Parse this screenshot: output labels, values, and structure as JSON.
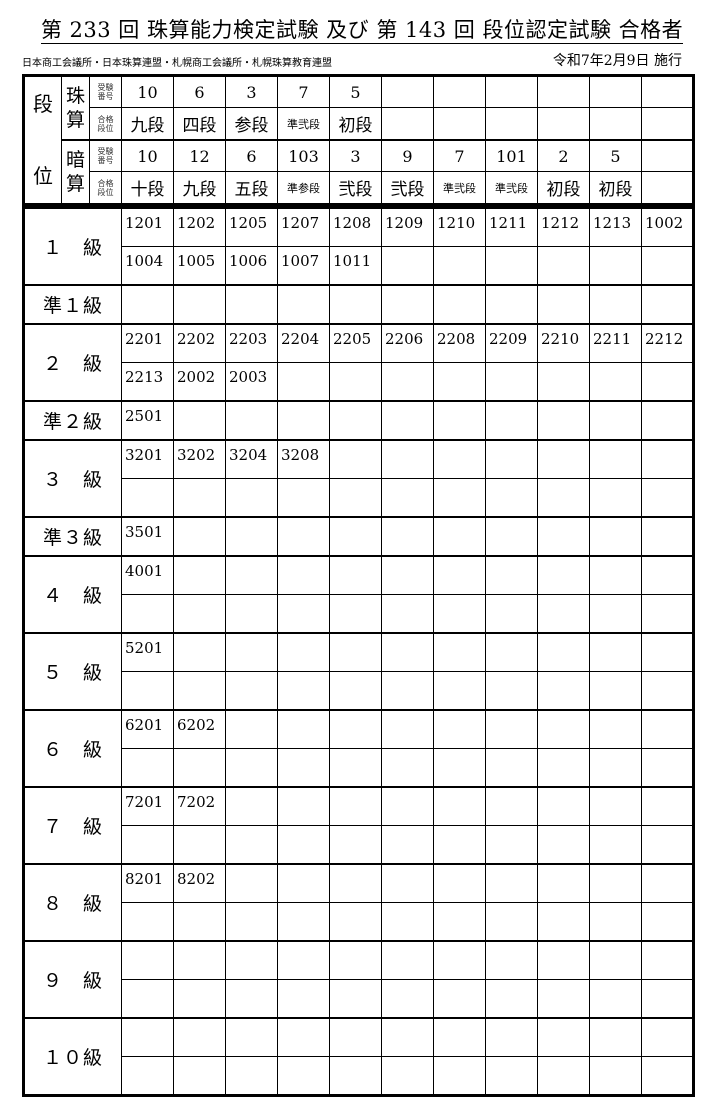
{
  "title": "第 233 回 珠算能力検定試験 及び 第 143 回 段位認定試験 合格者",
  "organizers": "日本商工会議所・日本珠算連盟・札幌商工会議所・札幌珠算教育連盟",
  "date": "令和7年2月9日 施行",
  "dan": {
    "label_top": "段",
    "label_bottom": "位",
    "sub_label_exam": "受験\n番号",
    "sub_label_grade": "合格\n段位",
    "soroban": {
      "label1": "珠",
      "label2": "算",
      "numbers": [
        "10",
        "6",
        "3",
        "7",
        "5",
        "",
        "",
        "",
        "",
        "",
        ""
      ],
      "grades": [
        "九段",
        "四段",
        "参段",
        "準弐段",
        "初段",
        "",
        "",
        "",
        "",
        "",
        ""
      ]
    },
    "anzan": {
      "label1": "暗",
      "label2": "算",
      "numbers": [
        "10",
        "12",
        "6",
        "103",
        "3",
        "9",
        "7",
        "101",
        "2",
        "5",
        ""
      ],
      "grades": [
        "十段",
        "九段",
        "五段",
        "準参段",
        "弐段",
        "弐段",
        "準弐段",
        "準弐段",
        "初段",
        "初段",
        ""
      ]
    }
  },
  "kyu": [
    {
      "label": "１　級",
      "lines": [
        [
          "1201",
          "1202",
          "1205",
          "1207",
          "1208",
          "1209",
          "1210",
          "1211",
          "1212",
          "1213",
          "1002"
        ],
        [
          "1004",
          "1005",
          "1006",
          "1007",
          "1011"
        ]
      ]
    },
    {
      "label": "準１級",
      "lines": [
        []
      ]
    },
    {
      "label": "２　級",
      "lines": [
        [
          "2201",
          "2202",
          "2203",
          "2204",
          "2205",
          "2206",
          "2208",
          "2209",
          "2210",
          "2211",
          "2212"
        ],
        [
          "2213",
          "2002",
          "2003"
        ]
      ]
    },
    {
      "label": "準２級",
      "lines": [
        [
          "2501"
        ]
      ]
    },
    {
      "label": "３　級",
      "lines": [
        [
          "3201",
          "3202",
          "3204",
          "3208"
        ],
        []
      ]
    },
    {
      "label": "準３級",
      "lines": [
        [
          "3501"
        ]
      ]
    },
    {
      "label": "４　級",
      "lines": [
        [
          "4001"
        ],
        []
      ]
    },
    {
      "label": "５　級",
      "lines": [
        [
          "5201"
        ],
        []
      ]
    },
    {
      "label": "６　級",
      "lines": [
        [
          "6201",
          "6202"
        ],
        []
      ]
    },
    {
      "label": "７　級",
      "lines": [
        [
          "7201",
          "7202"
        ],
        []
      ]
    },
    {
      "label": "８　級",
      "lines": [
        [
          "8201",
          "8202"
        ],
        []
      ]
    },
    {
      "label": "９　級",
      "lines": [
        [],
        []
      ]
    },
    {
      "label": "１０級",
      "lines": [
        [],
        []
      ]
    }
  ]
}
